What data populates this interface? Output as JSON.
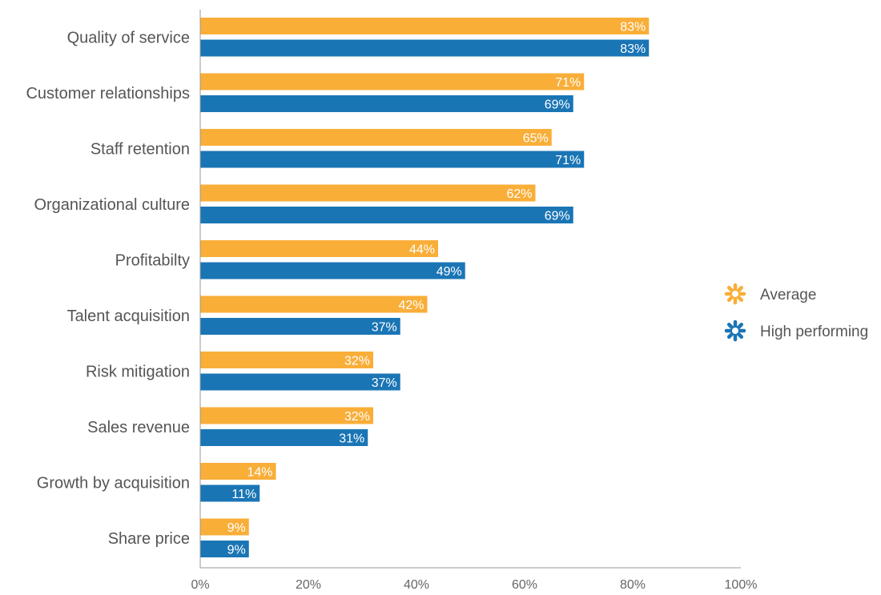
{
  "chart_data": {
    "type": "bar",
    "orientation": "horizontal",
    "title": "",
    "xlabel": "",
    "ylabel": "",
    "xlim": [
      0,
      100
    ],
    "x_ticks": [
      "0%",
      "20%",
      "40%",
      "60%",
      "80%",
      "100%"
    ],
    "x_tick_values": [
      0,
      20,
      40,
      60,
      80,
      100
    ],
    "grid": false,
    "legend_position": "right",
    "categories": [
      "Quality of service",
      "Customer relationships",
      "Staff retention",
      "Organizational culture",
      "Profitabilty",
      "Talent acquisition",
      "Risk mitigation",
      "Sales revenue",
      "Growth by acquisition",
      "Share price"
    ],
    "series": [
      {
        "name": "Average",
        "color": "#F9AE38",
        "values": [
          83,
          71,
          65,
          62,
          44,
          42,
          32,
          32,
          14,
          9
        ],
        "labels": [
          "83%",
          "71%",
          "65%",
          "62%",
          "44%",
          "42%",
          "32%",
          "32%",
          "14%",
          "9%"
        ]
      },
      {
        "name": "High performing",
        "color": "#1A75B5",
        "values": [
          83,
          69,
          71,
          69,
          49,
          37,
          37,
          31,
          11,
          9
        ],
        "labels": [
          "83%",
          "69%",
          "71%",
          "69%",
          "49%",
          "37%",
          "37%",
          "31%",
          "11%",
          "9%"
        ]
      }
    ],
    "legend_icon": "asterisk-icon"
  }
}
